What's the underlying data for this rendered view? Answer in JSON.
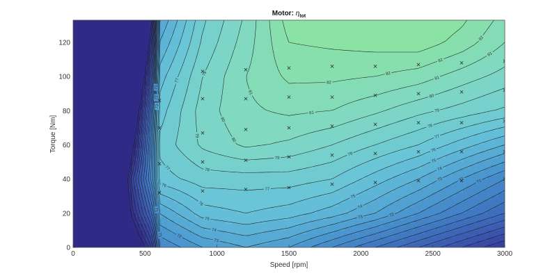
{
  "chart_data": {
    "type": "contour",
    "title": "Motor: ",
    "title_symbol": "η",
    "title_subscript": "tot",
    "xlabel": "Speed [rpm]",
    "ylabel": "Torque [Nm]",
    "xlim": [
      0,
      3000
    ],
    "ylim": [
      0,
      133
    ],
    "xticks": [
      0,
      500,
      1000,
      1500,
      2000,
      2500,
      3000
    ],
    "yticks": [
      0,
      20,
      40,
      60,
      80,
      100,
      120
    ],
    "colormap": [
      "#2f2a86",
      "#3b4fa8",
      "#3e74bf",
      "#4d9bd0",
      "#67c3d9",
      "#7fd8c4",
      "#8de3a0"
    ],
    "level_range": [
      60,
      84
    ],
    "grid": {
      "x": [
        0,
        200,
        400,
        550,
        600,
        900,
        1200,
        1500,
        1800,
        2100,
        2400,
        2700,
        3000
      ],
      "y": [
        0,
        20,
        40,
        60,
        80,
        100,
        120,
        133
      ],
      "z": [
        [
          38,
          48,
          56,
          62,
          70,
          72,
          73,
          72,
          70,
          68,
          66,
          64,
          62
        ],
        [
          34,
          45,
          60,
          67,
          73,
          75.5,
          76,
          75.5,
          74.5,
          73,
          71,
          69,
          67
        ],
        [
          30,
          42,
          62,
          70.5,
          76.5,
          77.5,
          77.5,
          77.5,
          77,
          75.5,
          74,
          72,
          70
        ],
        [
          26,
          38,
          58,
          70,
          77.3,
          79.2,
          80.2,
          79.8,
          79,
          78,
          77,
          75.5,
          74
        ],
        [
          22,
          34,
          55,
          68,
          76.5,
          79.5,
          80.8,
          81.2,
          81,
          80.2,
          79.3,
          78.6,
          77.8
        ],
        [
          18,
          30,
          51,
          65,
          75.5,
          79,
          81,
          82.2,
          82.2,
          82,
          81.5,
          80.5,
          79.6
        ],
        [
          14,
          26,
          47,
          62,
          74,
          78.2,
          80.5,
          83,
          83.2,
          83.4,
          83.6,
          82.6,
          81
        ],
        [
          12,
          24,
          45,
          60,
          73,
          77.8,
          80.2,
          83.5,
          83.7,
          83.9,
          84,
          83.2,
          81.6
        ]
      ]
    },
    "contour_levels": [
      60,
      61,
      62,
      63,
      64,
      65,
      66,
      67,
      68,
      69,
      70,
      71,
      72,
      73,
      74,
      75,
      76,
      77,
      78,
      79,
      80,
      81,
      82,
      83
    ],
    "labeled_levels": [
      71,
      72,
      73,
      74,
      75,
      76,
      77,
      78,
      79,
      80,
      81,
      82
    ],
    "measurement_points": [
      [
        600,
        32
      ],
      [
        600,
        49
      ],
      [
        600,
        70
      ],
      [
        600,
        86
      ],
      [
        900,
        33
      ],
      [
        900,
        50
      ],
      [
        900,
        67
      ],
      [
        900,
        87
      ],
      [
        900,
        103
      ],
      [
        1200,
        34
      ],
      [
        1200,
        51
      ],
      [
        1200,
        69
      ],
      [
        1200,
        87
      ],
      [
        1200,
        104
      ],
      [
        1500,
        35
      ],
      [
        1500,
        53
      ],
      [
        1500,
        70
      ],
      [
        1500,
        88
      ],
      [
        1500,
        105
      ],
      [
        1800,
        37
      ],
      [
        1800,
        54
      ],
      [
        1800,
        71
      ],
      [
        1800,
        88
      ],
      [
        1800,
        106
      ],
      [
        2100,
        38
      ],
      [
        2100,
        55
      ],
      [
        2100,
        72
      ],
      [
        2100,
        89
      ],
      [
        2100,
        106
      ],
      [
        2400,
        39
      ],
      [
        2400,
        56
      ],
      [
        2400,
        73
      ],
      [
        2400,
        90
      ],
      [
        2400,
        107
      ],
      [
        2700,
        39
      ],
      [
        2700,
        56
      ],
      [
        2700,
        73
      ],
      [
        2700,
        91
      ],
      [
        2700,
        108
      ],
      [
        3000,
        40
      ],
      [
        3000,
        56
      ],
      [
        3000,
        74
      ],
      [
        3000,
        92
      ],
      [
        3000,
        109
      ]
    ]
  }
}
